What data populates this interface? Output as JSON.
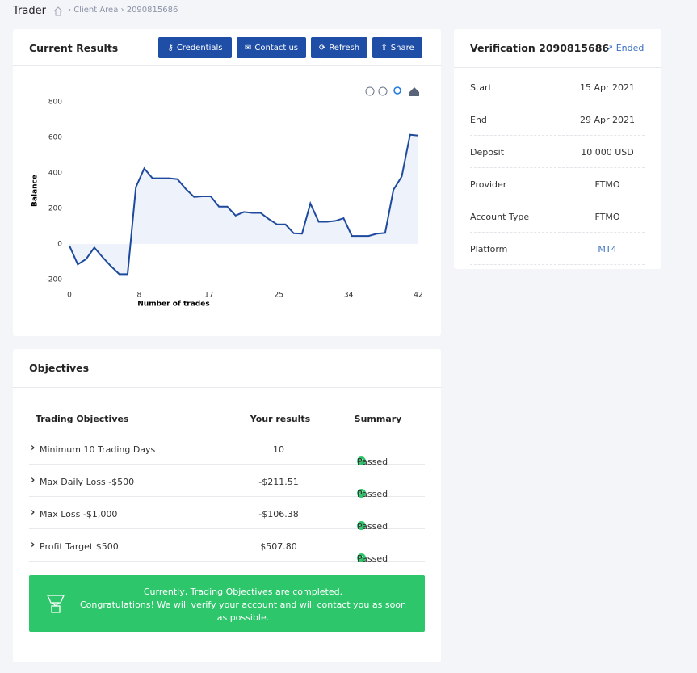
{
  "header": {
    "title": "Trader",
    "breadcrumb": [
      "Client Area",
      "2090815686"
    ]
  },
  "results": {
    "title": "Current Results",
    "buttons": [
      "Credentials",
      "Contact us",
      "Refresh",
      "Share"
    ]
  },
  "chart_data": {
    "type": "line",
    "ylabel": "Balance",
    "xlabel": "Number of trades",
    "color": "#1e4a9e",
    "x": [
      0,
      1,
      2,
      3,
      4,
      5,
      6,
      7,
      8,
      9,
      10,
      11,
      12,
      13,
      14,
      15,
      16,
      17,
      18,
      19,
      20,
      21,
      22,
      23,
      24,
      25,
      26,
      27,
      28,
      29,
      30,
      31,
      32,
      33,
      34,
      35,
      36,
      37,
      38,
      39,
      40,
      41,
      42
    ],
    "values": [
      -10,
      -115,
      -85,
      -20,
      -75,
      -125,
      -170,
      -170,
      320,
      425,
      370,
      370,
      370,
      365,
      310,
      265,
      268,
      268,
      210,
      210,
      160,
      180,
      175,
      175,
      140,
      110,
      110,
      60,
      58,
      228,
      125,
      125,
      130,
      145,
      45,
      45,
      45,
      58,
      62,
      305,
      380,
      615,
      610
    ],
    "xlim": [
      0,
      42
    ],
    "ylim": [
      -200,
      800
    ],
    "xticks": [
      0,
      {
        "value": 8.4,
        "label": "8"
      },
      {
        "value": 16.8,
        "label": "17"
      },
      {
        "value": 25.2,
        "label": "25"
      },
      {
        "value": 33.6,
        "label": "34"
      },
      42
    ],
    "yticks": [
      -200,
      0,
      200,
      400,
      600,
      800
    ]
  },
  "verification": {
    "title": "Verification 2090815686",
    "status": "Ended",
    "rows": [
      [
        "Start",
        "15 Apr 2021"
      ],
      [
        "End",
        "29 Apr 2021"
      ],
      [
        "Deposit",
        "10 000 USD"
      ],
      [
        "Provider",
        "FTMO"
      ],
      [
        "Account Type",
        "FTMO"
      ],
      [
        "Platform",
        "MT4"
      ]
    ]
  },
  "objectives": {
    "title": "Objectives",
    "headers": [
      "Trading Objectives",
      "Your results",
      "Summary"
    ],
    "rows": [
      [
        "Minimum 10 Trading Days",
        "10",
        "Passed"
      ],
      [
        "Max Daily Loss -$500",
        "-$211.51",
        "Passed"
      ],
      [
        "Max Loss -$1,000",
        "-$106.38",
        "Passed"
      ],
      [
        "Profit Target $500",
        "$507.80",
        "Passed"
      ]
    ],
    "message": [
      "Currently, Trading Objectives are completed.",
      "Congratulations! We will verify your account and will contact you as soon as possible."
    ]
  }
}
